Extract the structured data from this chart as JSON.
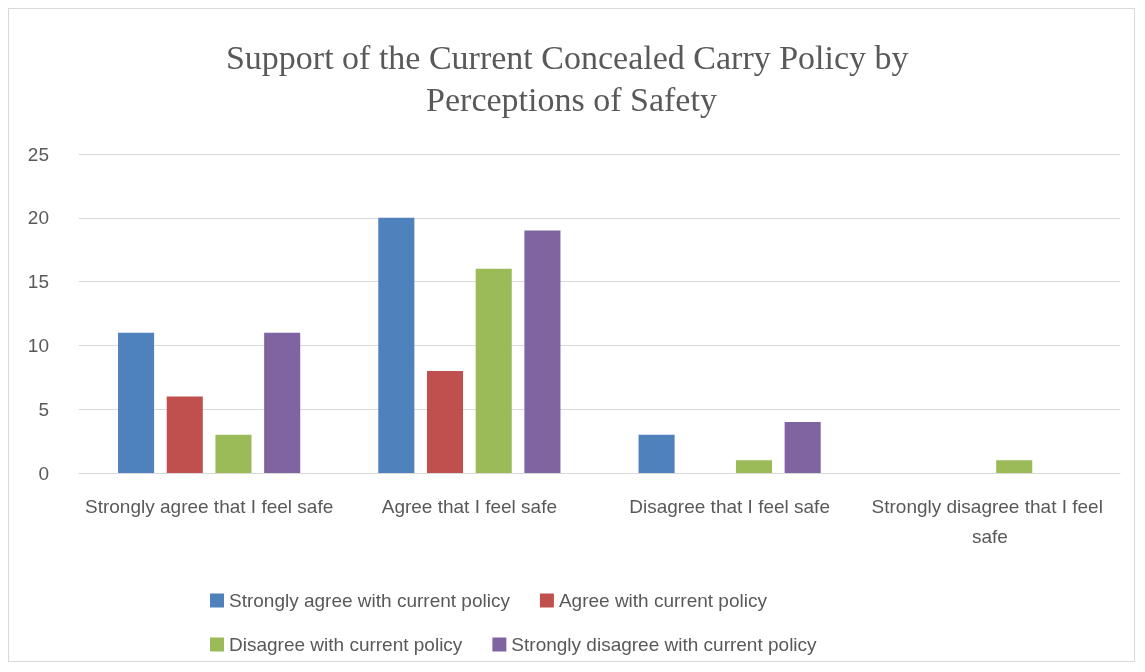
{
  "chart_data": {
    "type": "bar",
    "title": "Support of the Current Concealed Carry Policy by Perceptions of Safety",
    "categories": [
      "Strongly agree that I feel safe",
      "Agree that I feel safe",
      "Disagree that I feel safe",
      "Strongly disagree that I feel safe"
    ],
    "series": [
      {
        "name": "Strongly agree with current policy",
        "color": "#4f81bd",
        "values": [
          11,
          20,
          3,
          0
        ]
      },
      {
        "name": "Agree with current policy",
        "color": "#c0504d",
        "values": [
          6,
          8,
          0,
          0
        ]
      },
      {
        "name": "Disagree with current policy",
        "color": "#9bbb59",
        "values": [
          3,
          16,
          1,
          1
        ]
      },
      {
        "name": "Strongly disagree with current policy",
        "color": "#8064a2",
        "values": [
          11,
          19,
          4,
          0
        ]
      }
    ],
    "ylim": [
      0,
      25
    ],
    "yticks": [
      0,
      5,
      10,
      15,
      20,
      25
    ],
    "grid": "y",
    "legend": "bottom"
  }
}
